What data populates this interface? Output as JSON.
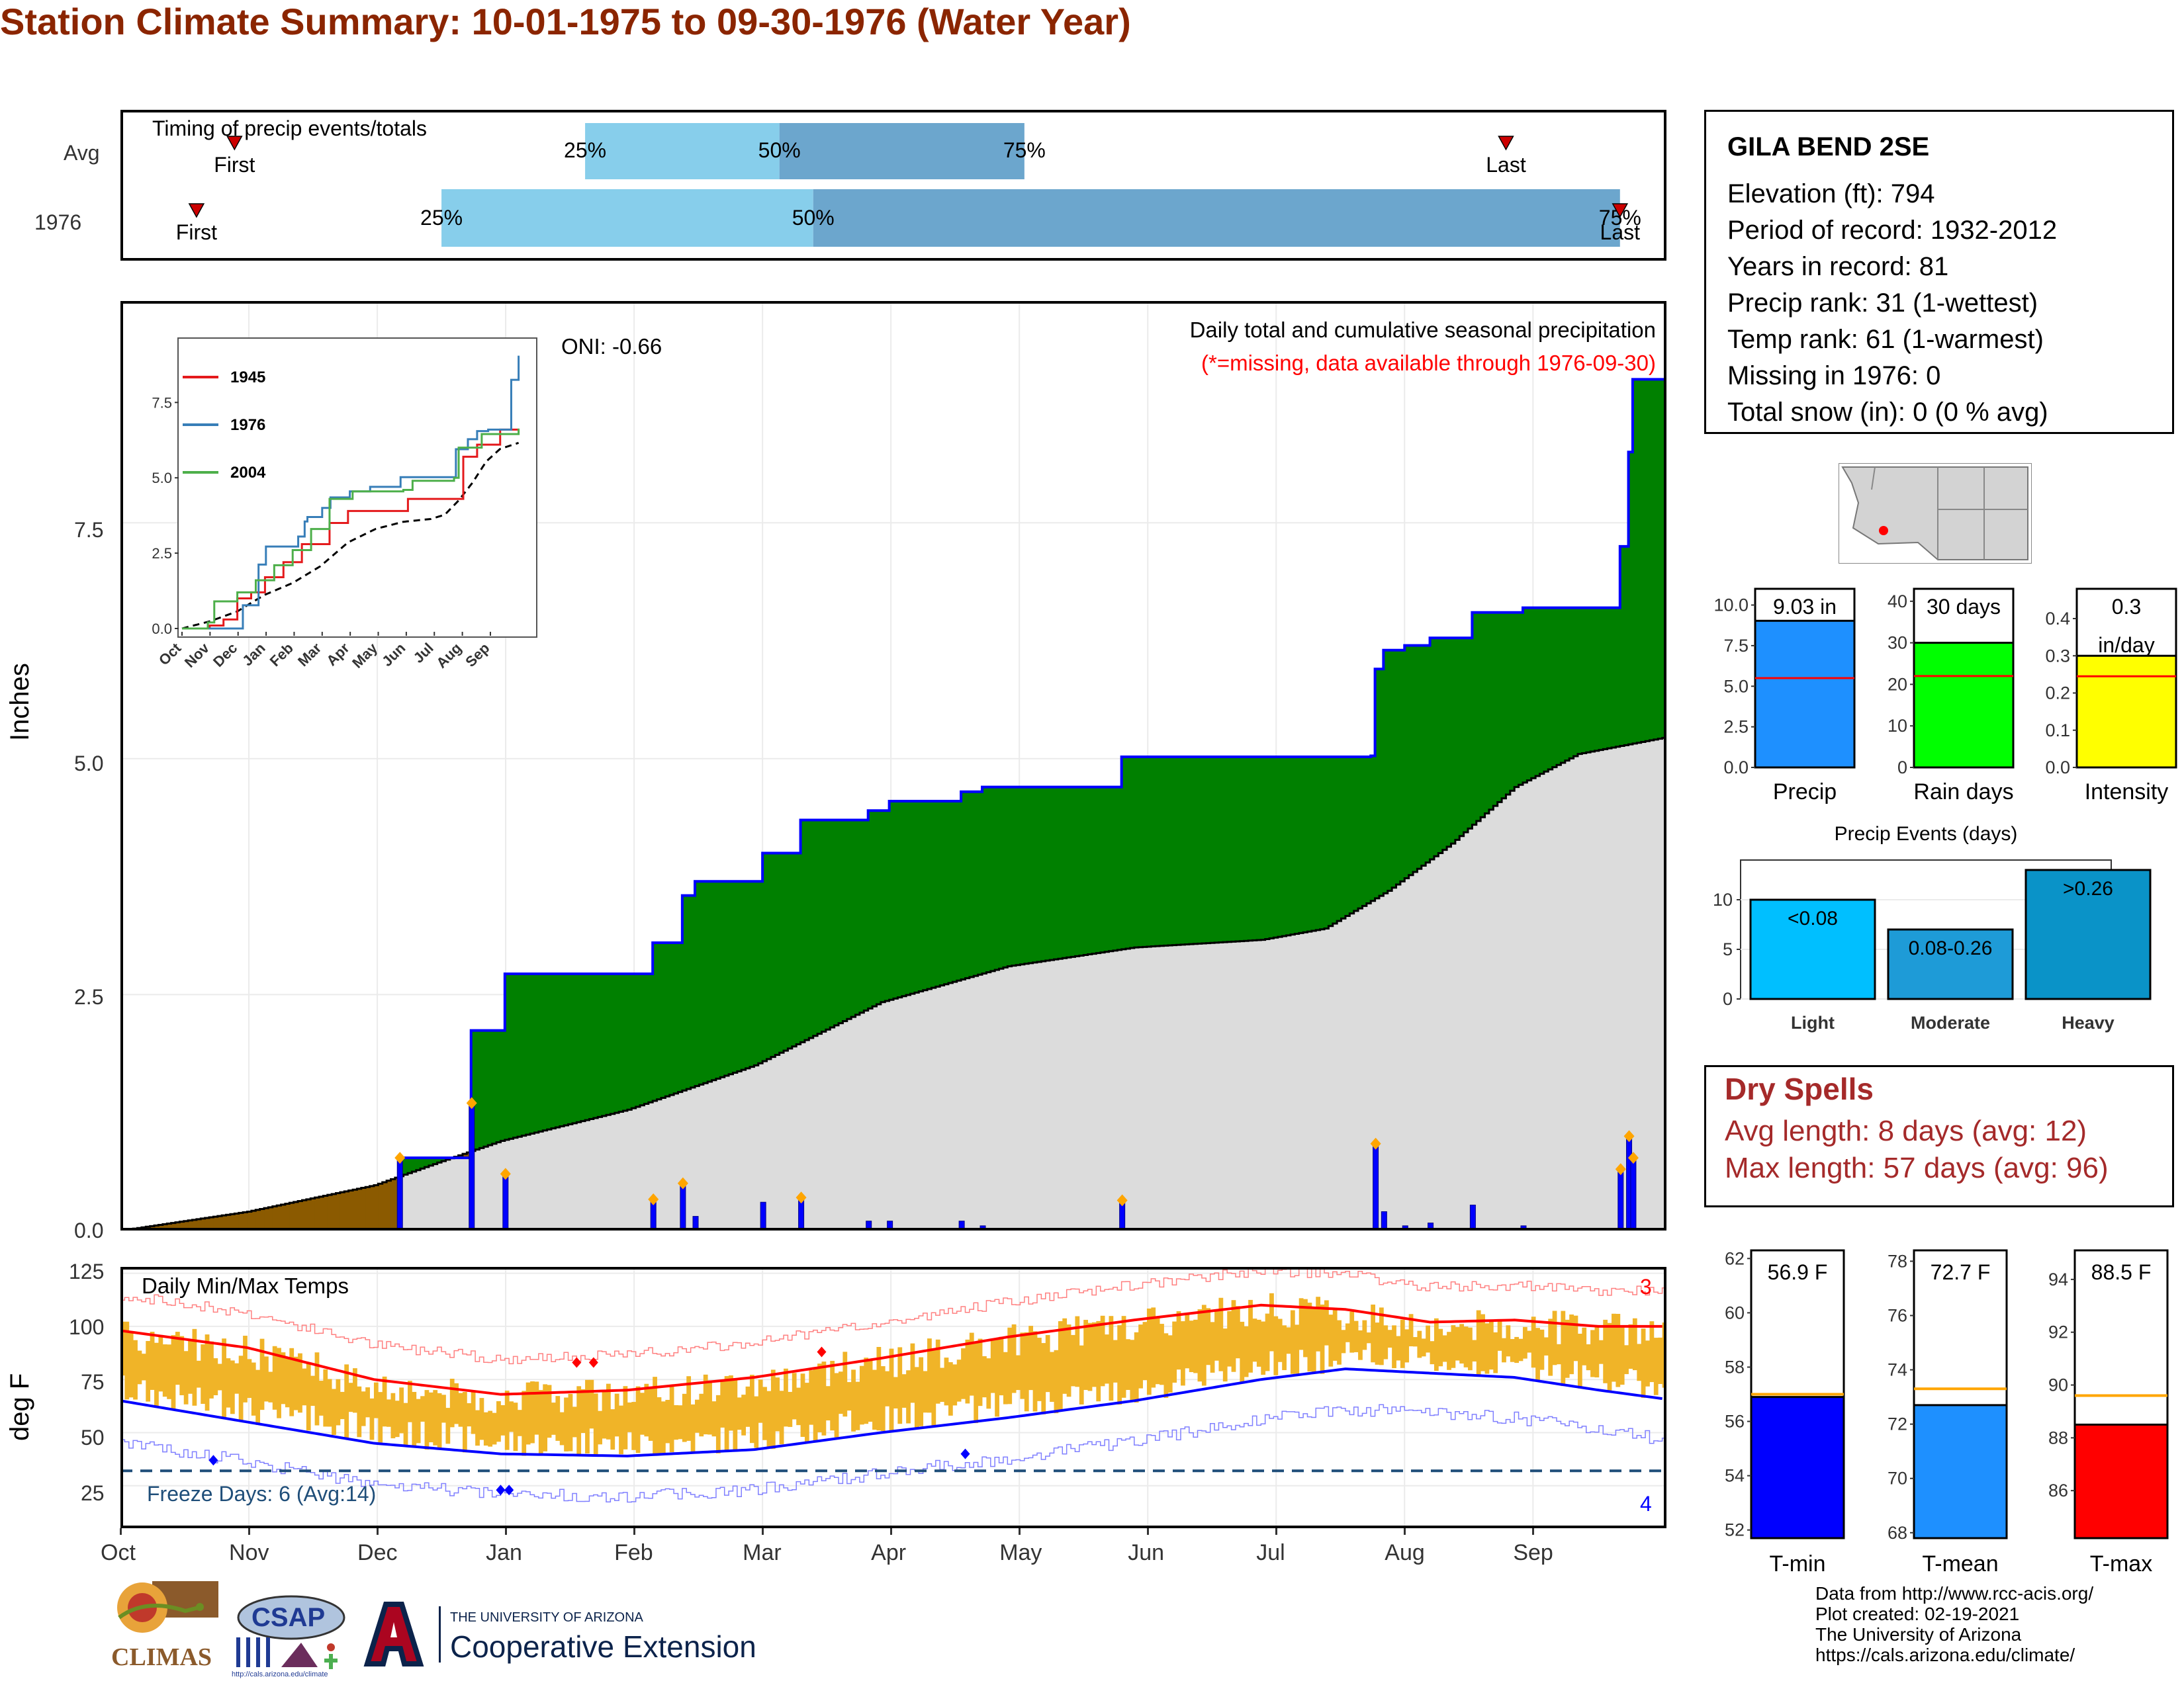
{
  "title": "Station Climate Summary: 10-01-1975 to 09-30-1976 (Water Year)",
  "timing": {
    "label": "Timing of precip events/totals",
    "rows": [
      {
        "name": "Avg",
        "first_label": "First",
        "last_label": "Last",
        "first_day": 27,
        "last_day": 328,
        "p25_day": 110,
        "p50_day": 156,
        "p75_day": 214,
        "p25": "25%",
        "p50": "50%",
        "p75": "75%"
      },
      {
        "name": "1976",
        "first_label": "First",
        "last_label": "Last",
        "first_day": 18,
        "last_day": 355,
        "p25_day": 76,
        "p50_day": 164,
        "p75_day": 355,
        "p25": "25%",
        "p50": "50%",
        "p75": "75%"
      }
    ]
  },
  "main_chart": {
    "y_label": "Inches",
    "oni": "ONI: -0.66",
    "note1": "Daily total and cumulative seasonal precipitation",
    "note2": "(*=missing, data available through 1976-09-30)",
    "yticks": [
      "0.0",
      "2.5",
      "5.0",
      "7.5"
    ],
    "colors": {
      "above_avg": "#008000",
      "below_avg": "#8B5A00",
      "avg_fill": "#DCDCDC",
      "cum_line": "#0000FF",
      "daily_bar": "#0000FF",
      "marker": "#FFA500"
    }
  },
  "chart_data": [
    {
      "type": "line",
      "title": "Daily total and cumulative seasonal precipitation",
      "ylabel": "Inches",
      "ylim": [
        0,
        9.8
      ],
      "series": [
        {
          "name": "1976",
          "points": [
            [
              0,
              0
            ],
            [
              65,
              0
            ],
            [
              66,
              0.77
            ],
            [
              82,
              0.77
            ],
            [
              83,
              2.12
            ],
            [
              90,
              2.12
            ],
            [
              91,
              2.72
            ],
            [
              125,
              2.72
            ],
            [
              126,
              3.05
            ],
            [
              132,
              3.05
            ],
            [
              133,
              3.55
            ],
            [
              135,
              3.55
            ],
            [
              136,
              3.7
            ],
            [
              151,
              3.7
            ],
            [
              152,
              4.0
            ],
            [
              160,
              4.0
            ],
            [
              161,
              4.35
            ],
            [
              176,
              4.35
            ],
            [
              177,
              4.45
            ],
            [
              181,
              4.45
            ],
            [
              182,
              4.55
            ],
            [
              198,
              4.55
            ],
            [
              199,
              4.65
            ],
            [
              203,
              4.65
            ],
            [
              204,
              4.7
            ],
            [
              236,
              4.7
            ],
            [
              237,
              5.02
            ],
            [
              294,
              5.02
            ],
            [
              296,
              5.03
            ],
            [
              297,
              5.95
            ],
            [
              299,
              6.15
            ],
            [
              304,
              6.2
            ],
            [
              310,
              6.28
            ],
            [
              318,
              6.28
            ],
            [
              320,
              6.55
            ],
            [
              330,
              6.55
            ],
            [
              332,
              6.6
            ],
            [
              354,
              6.6
            ],
            [
              355,
              7.25
            ],
            [
              357,
              8.25
            ],
            [
              358,
              9.02
            ],
            [
              365,
              9.02
            ]
          ]
        },
        {
          "name": "Avg",
          "points": [
            [
              0,
              0
            ],
            [
              30,
              0.2
            ],
            [
              60,
              0.48
            ],
            [
              75,
              0.72
            ],
            [
              90,
              0.95
            ],
            [
              120,
              1.28
            ],
            [
              150,
              1.75
            ],
            [
              180,
              2.42
            ],
            [
              210,
              2.8
            ],
            [
              240,
              3.0
            ],
            [
              270,
              3.08
            ],
            [
              285,
              3.2
            ],
            [
              300,
              3.6
            ],
            [
              315,
              4.1
            ],
            [
              330,
              4.7
            ],
            [
              345,
              5.05
            ],
            [
              365,
              5.22
            ]
          ]
        }
      ]
    },
    {
      "type": "line",
      "title": "Daily Min/Max Temps",
      "ylabel": "deg F",
      "ylim": [
        5,
        128
      ],
      "series": [
        {
          "name": "Avg max",
          "points": [
            [
              0,
              98
            ],
            [
              30,
              90
            ],
            [
              60,
              75
            ],
            [
              90,
              68
            ],
            [
              120,
              70
            ],
            [
              150,
              76
            ],
            [
              180,
              85
            ],
            [
              210,
              95
            ],
            [
              240,
              103
            ],
            [
              270,
              110
            ],
            [
              290,
              108
            ],
            [
              310,
              102
            ],
            [
              330,
              103
            ],
            [
              350,
              100
            ],
            [
              365,
              100
            ]
          ]
        },
        {
          "name": "Avg min",
          "points": [
            [
              0,
              65
            ],
            [
              30,
              55
            ],
            [
              60,
              45
            ],
            [
              90,
              40
            ],
            [
              120,
              39
            ],
            [
              150,
              42
            ],
            [
              180,
              50
            ],
            [
              210,
              57
            ],
            [
              240,
              65
            ],
            [
              270,
              75
            ],
            [
              290,
              80
            ],
            [
              310,
              78
            ],
            [
              330,
              76
            ],
            [
              350,
              70
            ],
            [
              365,
              66
            ]
          ]
        }
      ]
    },
    {
      "type": "bar",
      "title": "Precip",
      "categories": [
        "Precip"
      ],
      "values": [
        9.03
      ],
      "ylim": [
        0,
        11
      ],
      "avg": 5.5,
      "label": "9.03 in"
    },
    {
      "type": "bar",
      "title": "Rain days",
      "categories": [
        "Rain days"
      ],
      "values": [
        30
      ],
      "ylim": [
        0,
        43
      ],
      "avg": 22,
      "label": "30 days"
    },
    {
      "type": "bar",
      "title": "Intensity",
      "categories": [
        "Intensity"
      ],
      "values": [
        0.3
      ],
      "ylim": [
        0,
        0.48
      ],
      "avg": 0.245,
      "label": "0.3 in/day"
    },
    {
      "type": "bar",
      "title": "Precip Events (days)",
      "categories": [
        "Light",
        "Moderate",
        "Heavy"
      ],
      "values": [
        10,
        7,
        13
      ],
      "ylim": [
        0,
        14
      ],
      "labels": [
        "<0.08",
        "0.08-0.26",
        ">0.26"
      ]
    },
    {
      "type": "bar",
      "title": "T-min",
      "categories": [
        "T-min"
      ],
      "values": [
        56.9
      ],
      "ylim": [
        51.7,
        62.3
      ],
      "avg": 57.0,
      "label": "56.9 F"
    },
    {
      "type": "bar",
      "title": "T-mean",
      "categories": [
        "T-mean"
      ],
      "values": [
        72.7
      ],
      "ylim": [
        67.8,
        78.4
      ],
      "avg": 73.3,
      "label": "72.7 F"
    },
    {
      "type": "bar",
      "title": "T-max",
      "categories": [
        "T-max"
      ],
      "values": [
        88.5
      ],
      "ylim": [
        84.2,
        95.1
      ],
      "avg": 89.6,
      "label": "88.5 F"
    }
  ],
  "inset": {
    "series": [
      {
        "name": "1945",
        "color": "#E41A1C"
      },
      {
        "name": "1976",
        "color": "#377EB8"
      },
      {
        "name": "2004",
        "color": "#4DAF4A"
      }
    ],
    "yticks": [
      "0.0",
      "2.5",
      "5.0",
      "7.5"
    ],
    "months": [
      "Oct",
      "Nov",
      "Dec",
      "Jan",
      "Feb",
      "Mar",
      "Apr",
      "May",
      "Jun",
      "Jul",
      "Aug",
      "Sep"
    ]
  },
  "temp_chart": {
    "y_label": "deg F",
    "title": "Daily Min/Max Temps",
    "freeze": "Freeze Days: 6 (Avg:14)",
    "count_hi": "3",
    "count_lo": "4",
    "yticks": [
      "25",
      "50",
      "75",
      "100",
      "125"
    ],
    "months": [
      "Oct",
      "Nov",
      "Dec",
      "Jan",
      "Feb",
      "Mar",
      "Apr",
      "May",
      "Jun",
      "Jul",
      "Aug",
      "Sep"
    ]
  },
  "station": {
    "name": "GILA BEND 2SE",
    "elevation": "Elevation (ft): 794",
    "period": "Period of record: 1932-2012",
    "years": "Years in record: 81",
    "precip_rank": "Precip rank: 31 (1-wettest)",
    "temp_rank": "Temp rank: 61 (1-warmest)",
    "missing": "Missing in 1976: 0",
    "snow": "Total snow (in): 0 (0 % avg)"
  },
  "small_charts": {
    "precip": {
      "label": "Precip",
      "value_label": "9.03 in",
      "ticks": [
        "0.0",
        "2.5",
        "5.0",
        "7.5",
        "10.0"
      ]
    },
    "raindays": {
      "label": "Rain days",
      "value_label": "30 days",
      "ticks": [
        "0",
        "10",
        "20",
        "30",
        "40"
      ]
    },
    "intensity": {
      "label": "Intensity",
      "value_label_1": "0.3",
      "value_label_2": "in/day",
      "ticks": [
        "0.0",
        "0.1",
        "0.2",
        "0.3",
        "0.4"
      ]
    },
    "events": {
      "title": "Precip Events (days)",
      "ticks": [
        "0",
        "5",
        "10"
      ],
      "categories": [
        "Light",
        "Moderate",
        "Heavy"
      ],
      "labels": [
        "<0.08",
        "0.08-0.26",
        ">0.26"
      ]
    },
    "tmin": {
      "label": "T-min",
      "value_label": "56.9 F",
      "ticks": [
        "52",
        "54",
        "56",
        "58",
        "60",
        "62"
      ]
    },
    "tmean": {
      "label": "T-mean",
      "value_label": "72.7 F",
      "ticks": [
        "68",
        "70",
        "72",
        "74",
        "76",
        "78"
      ]
    },
    "tmax": {
      "label": "T-max",
      "value_label": "88.5 F",
      "ticks": [
        "86",
        "88",
        "90",
        "92",
        "94"
      ]
    }
  },
  "dry_spells": {
    "title": "Dry Spells",
    "avg": "Avg length: 8 days (avg: 12)",
    "max": "Max length: 57 days (avg: 96)"
  },
  "footer": {
    "line1": "Data from http://www.rcc-acis.org/",
    "line2": "Plot created: 02-19-2021",
    "line3": "The University of Arizona",
    "line4": "https://cals.arizona.edu/climate/"
  },
  "logos": {
    "climas": "CLIMAS",
    "csap": "CSAP",
    "csap_url": "http://cals.arizona.edu/climate",
    "ua_small": "THE UNIVERSITY OF ARIZONA",
    "ua_big": "Cooperative Extension"
  }
}
